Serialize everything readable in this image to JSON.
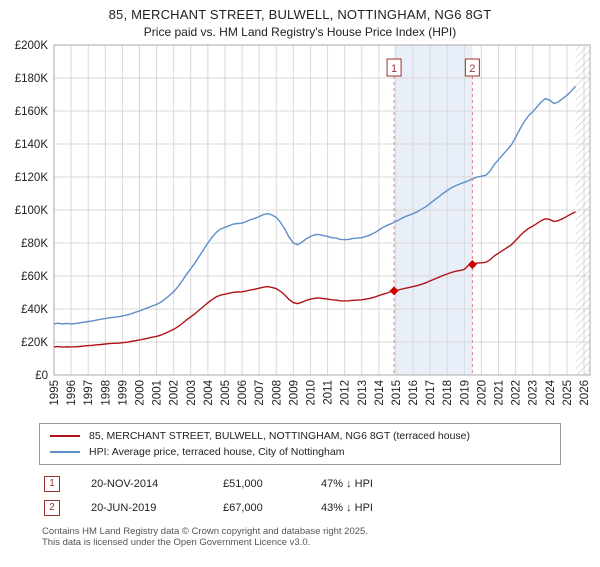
{
  "chart_data": {
    "type": "line",
    "title": "85, MERCHANT STREET, BULWELL, NOTTINGHAM, NG6 8GT",
    "subtitle": "Price paid vs. HM Land Registry's House Price Index (HPI)",
    "xlim": [
      1995,
      2026.35
    ],
    "ylim": [
      0,
      200000
    ],
    "grid": true,
    "legend_position": "bottom",
    "xticks": [
      1995,
      1996,
      1997,
      1998,
      1999,
      2000,
      2001,
      2002,
      2003,
      2004,
      2005,
      2006,
      2007,
      2008,
      2009,
      2010,
      2011,
      2012,
      2013,
      2014,
      2015,
      2016,
      2017,
      2018,
      2019,
      2020,
      2021,
      2022,
      2023,
      2024,
      2025,
      2026
    ],
    "ytick_values": [
      0,
      20000,
      40000,
      60000,
      80000,
      100000,
      120000,
      140000,
      160000,
      180000,
      200000
    ],
    "ytick_labels": [
      "£0",
      "£20K",
      "£40K",
      "£60K",
      "£80K",
      "£100K",
      "£120K",
      "£140K",
      "£160K",
      "£180K",
      "£200K"
    ],
    "x_start": 1995,
    "x_step": 0.25,
    "unit_multiplier": 1000,
    "series": [
      {
        "name": "85, MERCHANT STREET, BULWELL, NOTTINGHAM, NG6 8GT (terraced house)",
        "color": "#b01218",
        "values": [
          17.0,
          17.2,
          16.9,
          17.1,
          17.0,
          17.1,
          17.3,
          17.5,
          17.8,
          18.0,
          18.3,
          18.5,
          18.8,
          19.0,
          19.2,
          19.3,
          19.6,
          19.9,
          20.3,
          20.8,
          21.2,
          21.8,
          22.3,
          22.9,
          23.4,
          24.2,
          25.2,
          26.4,
          27.7,
          29.3,
          31.2,
          33.4,
          35.3,
          37.2,
          39.4,
          41.6,
          43.8,
          45.7,
          47.4,
          48.5,
          49.0,
          49.6,
          50.1,
          50.3,
          50.4,
          50.9,
          51.6,
          52.0,
          52.6,
          53.2,
          53.6,
          53.1,
          52.3,
          50.7,
          48.5,
          45.7,
          43.8,
          43.3,
          44.1,
          45.2,
          46.0,
          46.5,
          46.7,
          46.3,
          46.0,
          45.6,
          45.4,
          45.0,
          44.9,
          45.0,
          45.3,
          45.4,
          45.6,
          46.0,
          46.5,
          47.2,
          48.1,
          49.0,
          49.7,
          50.8,
          51.2,
          51.8,
          52.5,
          53.0,
          53.6,
          54.2,
          55.0,
          55.9,
          57.0,
          58.1,
          59.2,
          60.3,
          61.2,
          62.2,
          62.9,
          63.4,
          64.0,
          66.5,
          67.2,
          67.8,
          68.0,
          68.3,
          69.8,
          72.2,
          73.8,
          75.5,
          77.2,
          78.9,
          81.5,
          84.3,
          86.8,
          88.8,
          90.2,
          91.9,
          93.6,
          94.7,
          94.2,
          93.0,
          93.6,
          94.7,
          96.2,
          97.6,
          99.0
        ]
      },
      {
        "name": "HPI: Average price, terraced house, City of Nottingham",
        "color": "#5e8fc7",
        "values": [
          31.0,
          31.4,
          30.9,
          31.3,
          31.0,
          31.2,
          31.6,
          32.0,
          32.4,
          32.8,
          33.3,
          33.8,
          34.2,
          34.7,
          35.0,
          35.3,
          35.8,
          36.3,
          37.0,
          38.0,
          38.8,
          39.8,
          40.8,
          41.8,
          42.8,
          44.2,
          46.0,
          48.2,
          50.5,
          53.5,
          57.0,
          61.0,
          64.5,
          68.0,
          72.0,
          76.0,
          80.0,
          83.5,
          86.5,
          88.5,
          89.5,
          90.5,
          91.5,
          91.8,
          92.0,
          93.0,
          94.2,
          95.0,
          96.0,
          97.2,
          97.8,
          97.0,
          95.5,
          92.5,
          88.5,
          83.5,
          80.0,
          79.0,
          80.5,
          82.5,
          84.0,
          85.0,
          85.2,
          84.5,
          84.0,
          83.2,
          83.0,
          82.2,
          82.0,
          82.2,
          82.8,
          83.0,
          83.2,
          84.0,
          85.0,
          86.2,
          87.8,
          89.5,
          90.8,
          91.8,
          93.0,
          94.5,
          95.8,
          96.8,
          97.8,
          99.0,
          100.5,
          102.0,
          104.0,
          106.0,
          108.0,
          110.0,
          111.8,
          113.5,
          114.8,
          115.8,
          116.8,
          117.8,
          119.0,
          120.0,
          120.5,
          121.0,
          123.5,
          127.5,
          130.5,
          133.5,
          136.5,
          139.5,
          144.0,
          149.0,
          153.5,
          157.0,
          159.5,
          162.5,
          165.5,
          167.5,
          166.5,
          164.5,
          165.5,
          167.5,
          169.5,
          172.0,
          175.0
        ]
      }
    ],
    "sales": [
      {
        "label": "1",
        "x": 2014.89,
        "value": 51000
      },
      {
        "label": "2",
        "x": 2019.47,
        "value": 67000
      }
    ],
    "shaded_region": {
      "from": 2014.89,
      "to": 2019.47,
      "color": "#e9eff9"
    },
    "hatched_region": {
      "from": 2025.5,
      "to": 2026.35
    },
    "colors": {
      "grid": "#d8d8d8",
      "border": "#aaaaaa",
      "sale_dash": "#d98080",
      "sale_marker_box": "#993333",
      "sale_point": "#cc0000"
    }
  },
  "sales_table": {
    "rows": [
      {
        "marker": "1",
        "date": "20-NOV-2014",
        "price": "£51,000",
        "vs_hpi": "47% ↓ HPI"
      },
      {
        "marker": "2",
        "date": "20-JUN-2019",
        "price": "£67,000",
        "vs_hpi": "43% ↓ HPI"
      }
    ]
  },
  "footer": {
    "line1": "Contains HM Land Registry data © Crown copyright and database right 2025.",
    "line2": "This data is licensed under the Open Government Licence v3.0."
  }
}
